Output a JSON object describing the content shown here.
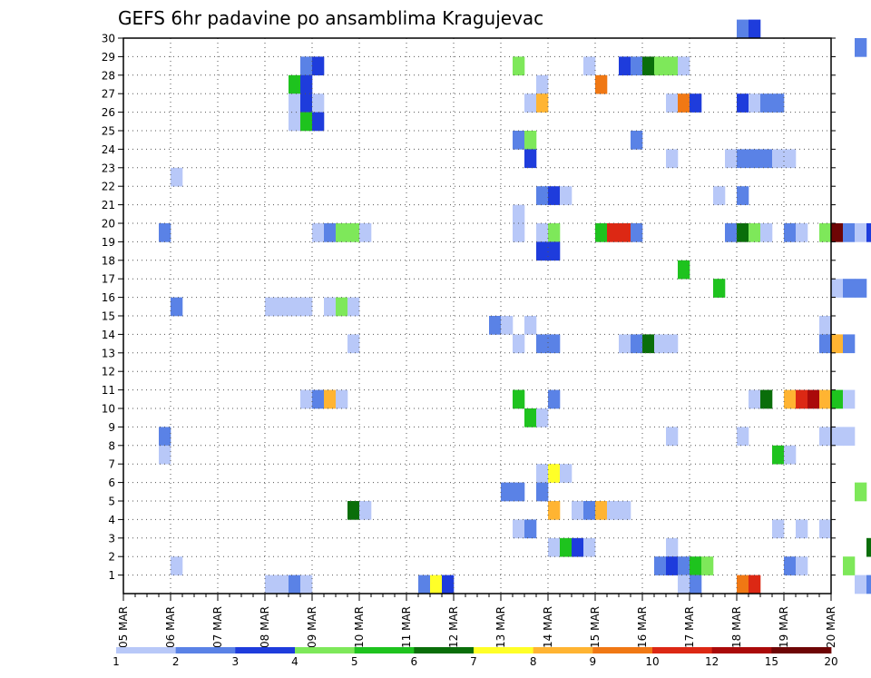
{
  "chart_data": {
    "type": "heatmap",
    "title": "GEFS 6hr padavine po ansamblima Kragujevac",
    "xlabel": "",
    "ylabel": "",
    "x_axis": {
      "type": "date",
      "start": "05 MAR",
      "end": "20 MAR",
      "tick_labels": [
        "05 MAR",
        "06 MAR",
        "07 MAR",
        "08 MAR",
        "09 MAR",
        "10 MAR",
        "11 MAR",
        "12 MAR",
        "13 MAR",
        "14 MAR",
        "15 MAR",
        "16 MAR",
        "17 MAR",
        "18 MAR",
        "19 MAR",
        "20 MAR"
      ],
      "steps_per_day": 4
    },
    "y_axis": {
      "min": 0,
      "max": 30,
      "tick_labels": [
        "1",
        "2",
        "3",
        "4",
        "5",
        "6",
        "7",
        "8",
        "9",
        "10",
        "11",
        "12",
        "13",
        "14",
        "15",
        "16",
        "17",
        "18",
        "19",
        "20",
        "21",
        "22",
        "23",
        "24",
        "25",
        "26",
        "27",
        "28",
        "29",
        "30"
      ]
    },
    "grid": true,
    "legend": {
      "placement": "bottom",
      "labels": [
        "1",
        "2",
        "3",
        "4",
        "5",
        "6",
        "7",
        "8",
        "9",
        "10",
        "12",
        "15",
        "20"
      ],
      "colors": [
        "#b8c8f8",
        "#5a82e6",
        "#1e3cdc",
        "#7ee85a",
        "#1ec31e",
        "#0a6e0a",
        "#ffff28",
        "#ffb432",
        "#f07814",
        "#dc2814",
        "#aa0a0a",
        "#6e0505"
      ]
    },
    "level_colors": {
      "1": "#b8c8f8",
      "2": "#5a82e6",
      "3": "#1e3cdc",
      "4": "#7ee85a",
      "5": "#1ec31e",
      "6": "#0a6e0a",
      "7": "#ffff28",
      "8": "#ffb432",
      "9": "#f07814",
      "10": "#dc2814",
      "11": "#aa0a0a",
      "12": "#6e0505"
    },
    "cells": [
      [
        52,
        30,
        2
      ],
      [
        53,
        30,
        3
      ],
      [
        62,
        29,
        2
      ],
      [
        98,
        29,
        2
      ],
      [
        15,
        28,
        2
      ],
      [
        16,
        28,
        3
      ],
      [
        33,
        28,
        4
      ],
      [
        39,
        28,
        1
      ],
      [
        42,
        28,
        3
      ],
      [
        43,
        28,
        2
      ],
      [
        44,
        28,
        6
      ],
      [
        45,
        28,
        4
      ],
      [
        46,
        28,
        4
      ],
      [
        47,
        28,
        1
      ],
      [
        14,
        27,
        5
      ],
      [
        15,
        27,
        3
      ],
      [
        35,
        27,
        1
      ],
      [
        40,
        27,
        9
      ],
      [
        66,
        27,
        1
      ],
      [
        67,
        27,
        1
      ],
      [
        14,
        26,
        1
      ],
      [
        15,
        26,
        3
      ],
      [
        16,
        26,
        1
      ],
      [
        34,
        26,
        1
      ],
      [
        35,
        26,
        8
      ],
      [
        46,
        26,
        1
      ],
      [
        47,
        26,
        9
      ],
      [
        48,
        26,
        3
      ],
      [
        52,
        26,
        3
      ],
      [
        53,
        26,
        1
      ],
      [
        54,
        26,
        2
      ],
      [
        55,
        26,
        2
      ],
      [
        14,
        25,
        1
      ],
      [
        15,
        25,
        5
      ],
      [
        16,
        25,
        3
      ],
      [
        33,
        24,
        2
      ],
      [
        34,
        24,
        4
      ],
      [
        43,
        24,
        2
      ],
      [
        34,
        23,
        3
      ],
      [
        46,
        23,
        1
      ],
      [
        51,
        23,
        1
      ],
      [
        52,
        23,
        2
      ],
      [
        53,
        23,
        2
      ],
      [
        54,
        23,
        2
      ],
      [
        55,
        23,
        1
      ],
      [
        56,
        23,
        1
      ],
      [
        4,
        22,
        1
      ],
      [
        35,
        21,
        2
      ],
      [
        36,
        21,
        3
      ],
      [
        37,
        21,
        1
      ],
      [
        50,
        21,
        1
      ],
      [
        52,
        21,
        2
      ],
      [
        33,
        20,
        1
      ],
      [
        3,
        19,
        2
      ],
      [
        16,
        19,
        1
      ],
      [
        17,
        19,
        2
      ],
      [
        18,
        19,
        4
      ],
      [
        19,
        19,
        4
      ],
      [
        20,
        19,
        1
      ],
      [
        33,
        19,
        1
      ],
      [
        35,
        19,
        1
      ],
      [
        36,
        19,
        4
      ],
      [
        40,
        19,
        5
      ],
      [
        41,
        19,
        10
      ],
      [
        42,
        19,
        10
      ],
      [
        43,
        19,
        2
      ],
      [
        51,
        19,
        2
      ],
      [
        52,
        19,
        6
      ],
      [
        53,
        19,
        4
      ],
      [
        54,
        19,
        1
      ],
      [
        56,
        19,
        2
      ],
      [
        57,
        19,
        1
      ],
      [
        59,
        19,
        4
      ],
      [
        60,
        19,
        12
      ],
      [
        61,
        19,
        2
      ],
      [
        62,
        19,
        1
      ],
      [
        63,
        19,
        3
      ],
      [
        64,
        19,
        7
      ],
      [
        65,
        19,
        2
      ],
      [
        35,
        18,
        3
      ],
      [
        36,
        18,
        3
      ],
      [
        47,
        17,
        5
      ],
      [
        50,
        16,
        5
      ],
      [
        60,
        16,
        1
      ],
      [
        61,
        16,
        2
      ],
      [
        62,
        16,
        2
      ],
      [
        4,
        15,
        2
      ],
      [
        12,
        15,
        1
      ],
      [
        13,
        15,
        1
      ],
      [
        14,
        15,
        1
      ],
      [
        15,
        15,
        1
      ],
      [
        17,
        15,
        1
      ],
      [
        18,
        15,
        4
      ],
      [
        19,
        15,
        1
      ],
      [
        31,
        14,
        2
      ],
      [
        32,
        14,
        1
      ],
      [
        34,
        14,
        1
      ],
      [
        59,
        14,
        1
      ],
      [
        19,
        13,
        1
      ],
      [
        33,
        13,
        1
      ],
      [
        35,
        13,
        2
      ],
      [
        36,
        13,
        2
      ],
      [
        42,
        13,
        1
      ],
      [
        43,
        13,
        2
      ],
      [
        44,
        13,
        6
      ],
      [
        45,
        13,
        1
      ],
      [
        46,
        13,
        1
      ],
      [
        59,
        13,
        2
      ],
      [
        60,
        13,
        8
      ],
      [
        61,
        13,
        2
      ],
      [
        15,
        10,
        1
      ],
      [
        16,
        10,
        2
      ],
      [
        17,
        10,
        8
      ],
      [
        18,
        10,
        1
      ],
      [
        33,
        10,
        5
      ],
      [
        36,
        10,
        2
      ],
      [
        53,
        10,
        1
      ],
      [
        54,
        10,
        6
      ],
      [
        56,
        10,
        8
      ],
      [
        57,
        10,
        10
      ],
      [
        58,
        10,
        11
      ],
      [
        59,
        10,
        8
      ],
      [
        60,
        10,
        5
      ],
      [
        61,
        10,
        1
      ],
      [
        34,
        9,
        5
      ],
      [
        35,
        9,
        1
      ],
      [
        3,
        8,
        2
      ],
      [
        46,
        8,
        1
      ],
      [
        52,
        8,
        1
      ],
      [
        59,
        8,
        1
      ],
      [
        60,
        8,
        1
      ],
      [
        61,
        8,
        1
      ],
      [
        3,
        7,
        1
      ],
      [
        55,
        7,
        5
      ],
      [
        56,
        7,
        1
      ],
      [
        35,
        6,
        1
      ],
      [
        36,
        6,
        7
      ],
      [
        37,
        6,
        1
      ],
      [
        32,
        5,
        2
      ],
      [
        33,
        5,
        2
      ],
      [
        35,
        5,
        2
      ],
      [
        62,
        5,
        4
      ],
      [
        65,
        5,
        1
      ],
      [
        19,
        4,
        6
      ],
      [
        20,
        4,
        1
      ],
      [
        36,
        4,
        8
      ],
      [
        38,
        4,
        1
      ],
      [
        39,
        4,
        2
      ],
      [
        40,
        4,
        8
      ],
      [
        41,
        4,
        1
      ],
      [
        42,
        4,
        1
      ],
      [
        33,
        3,
        1
      ],
      [
        34,
        3,
        2
      ],
      [
        55,
        3,
        1
      ],
      [
        57,
        3,
        1
      ],
      [
        59,
        3,
        1
      ],
      [
        36,
        2,
        1
      ],
      [
        37,
        2,
        5
      ],
      [
        38,
        2,
        3
      ],
      [
        39,
        2,
        1
      ],
      [
        46,
        2,
        1
      ],
      [
        63,
        2,
        6
      ],
      [
        64,
        2,
        5
      ],
      [
        65,
        2,
        3
      ],
      [
        66,
        2,
        3
      ],
      [
        67,
        2,
        3
      ],
      [
        4,
        1,
        1
      ],
      [
        45,
        1,
        2
      ],
      [
        46,
        1,
        3
      ],
      [
        47,
        1,
        2
      ],
      [
        48,
        1,
        5
      ],
      [
        49,
        1,
        4
      ],
      [
        56,
        1,
        2
      ],
      [
        57,
        1,
        1
      ],
      [
        61,
        1,
        4
      ],
      [
        12,
        0,
        1
      ],
      [
        13,
        0,
        1
      ],
      [
        14,
        0,
        2
      ],
      [
        15,
        0,
        1
      ],
      [
        25,
        0,
        2
      ],
      [
        26,
        0,
        7
      ],
      [
        27,
        0,
        3
      ],
      [
        47,
        0,
        1
      ],
      [
        48,
        0,
        2
      ],
      [
        52,
        0,
        9
      ],
      [
        53,
        0,
        10
      ],
      [
        62,
        0,
        1
      ],
      [
        63,
        0,
        2
      ],
      [
        64,
        0,
        1
      ]
    ]
  }
}
